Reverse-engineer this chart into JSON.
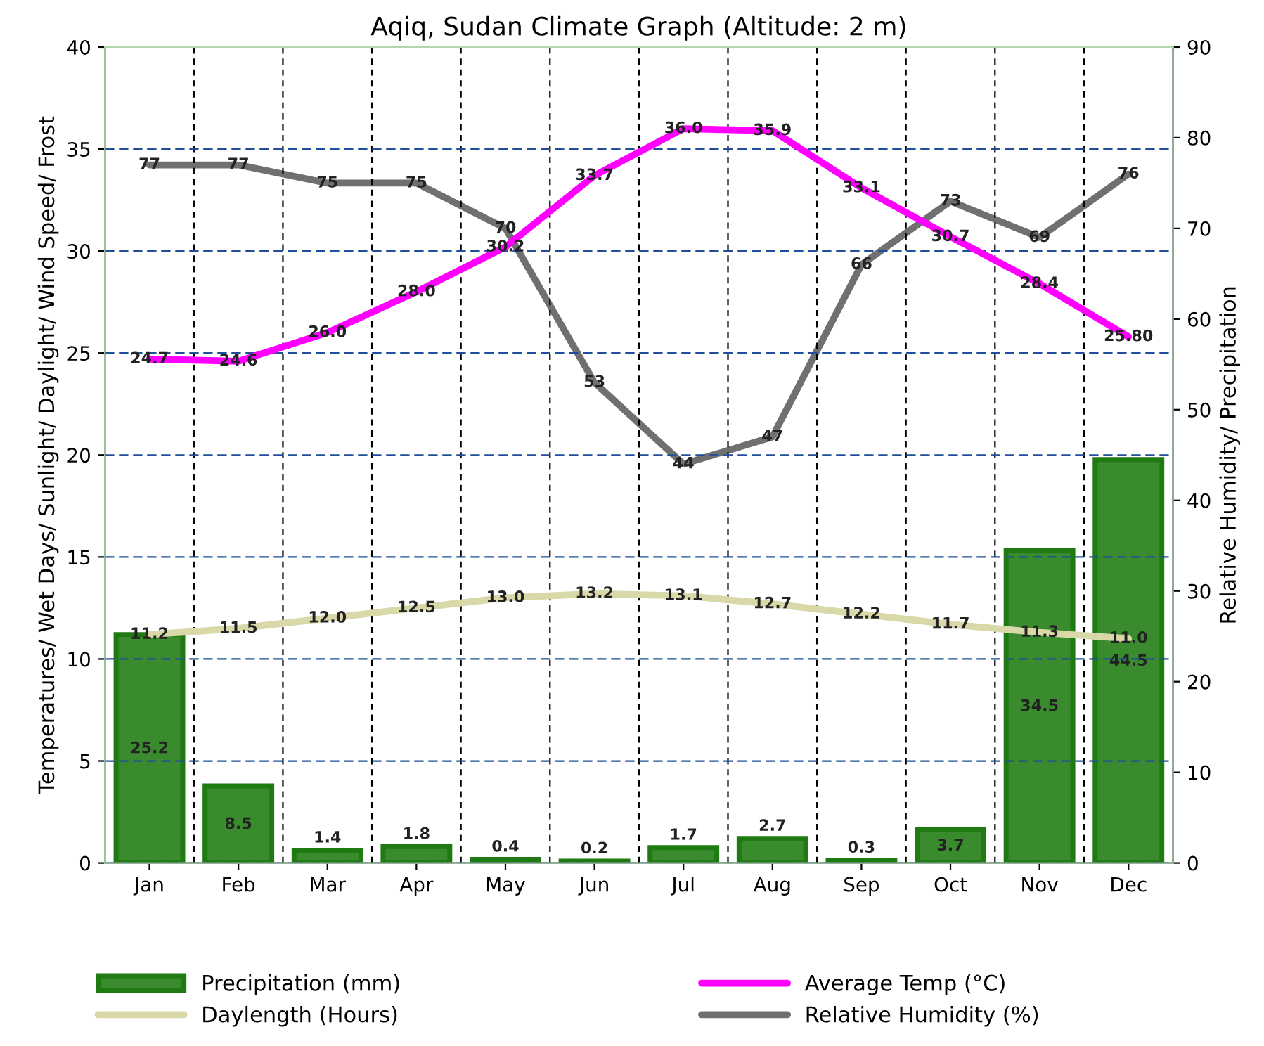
{
  "chart_data": {
    "type": "bar",
    "title": "Aqiq, Sudan Climate Graph (Altitude: 2 m)",
    "ylabel": "Temperatures/ Wet Days/ Sunlight/ Daylight/ Wind Speed/ Frost",
    "y2label": "Relative Humidity/ Precipitation",
    "categories": [
      "Jan",
      "Feb",
      "Mar",
      "Apr",
      "May",
      "Jun",
      "Jul",
      "Aug",
      "Sep",
      "Oct",
      "Nov",
      "Dec"
    ],
    "series": [
      {
        "name": "Precipitation (mm)",
        "axis": "y2",
        "color": "#3a8a2e",
        "values": [
          25.2,
          8.5,
          1.4,
          1.8,
          0.4,
          0.2,
          1.7,
          2.7,
          0.3,
          3.7,
          34.5,
          44.5
        ],
        "value_labels": [
          "25.2",
          "8.5",
          "1.4",
          "1.8",
          "0.4",
          "0.2",
          "1.7",
          "2.7",
          "0.3",
          "3.7",
          "34.5",
          "44.5"
        ]
      },
      {
        "name": "Average Temp (°C)",
        "type": "line",
        "color": "#ff00ff",
        "values": [
          24.7,
          24.6,
          26.0,
          28.0,
          30.2,
          33.7,
          36.0,
          35.9,
          33.1,
          30.7,
          28.4,
          25.8
        ],
        "value_labels": [
          "24.7",
          "24.6",
          "26.0",
          "28.0",
          "30.2",
          "33.7",
          "36.0",
          "35.9",
          "33.1",
          "30.7",
          "28.4",
          "25.80"
        ]
      },
      {
        "name": "Daylength (Hours)",
        "type": "line",
        "color": "#d8d8a8",
        "values": [
          11.2,
          11.5,
          12.0,
          12.5,
          13.0,
          13.2,
          13.1,
          12.7,
          12.2,
          11.7,
          11.3,
          11.0
        ],
        "value_labels": [
          "11.2",
          "11.5",
          "12.0",
          "12.5",
          "13.0",
          "13.2",
          "13.1",
          "12.7",
          "12.2",
          "11.7",
          "11.3",
          "11.0"
        ]
      },
      {
        "name": "Relative Humidity (%)",
        "type": "line",
        "axis": "y2",
        "color": "#707070",
        "values": [
          77,
          77,
          75,
          75,
          70,
          53,
          44,
          47,
          66,
          73,
          69,
          76
        ],
        "value_labels": [
          "77",
          "77",
          "75",
          "75",
          "70",
          "53",
          "44",
          "47",
          "66",
          "73",
          "69",
          "76"
        ]
      }
    ],
    "ylim": [
      0,
      40
    ],
    "yticks": [
      0,
      5,
      10,
      15,
      20,
      25,
      30,
      35,
      40
    ],
    "y2lim": [
      0,
      90
    ],
    "y2ticks": [
      0,
      10,
      20,
      30,
      40,
      50,
      60,
      70,
      80,
      90
    ],
    "grid": true,
    "legend": "bottom",
    "line_style": "solid"
  }
}
